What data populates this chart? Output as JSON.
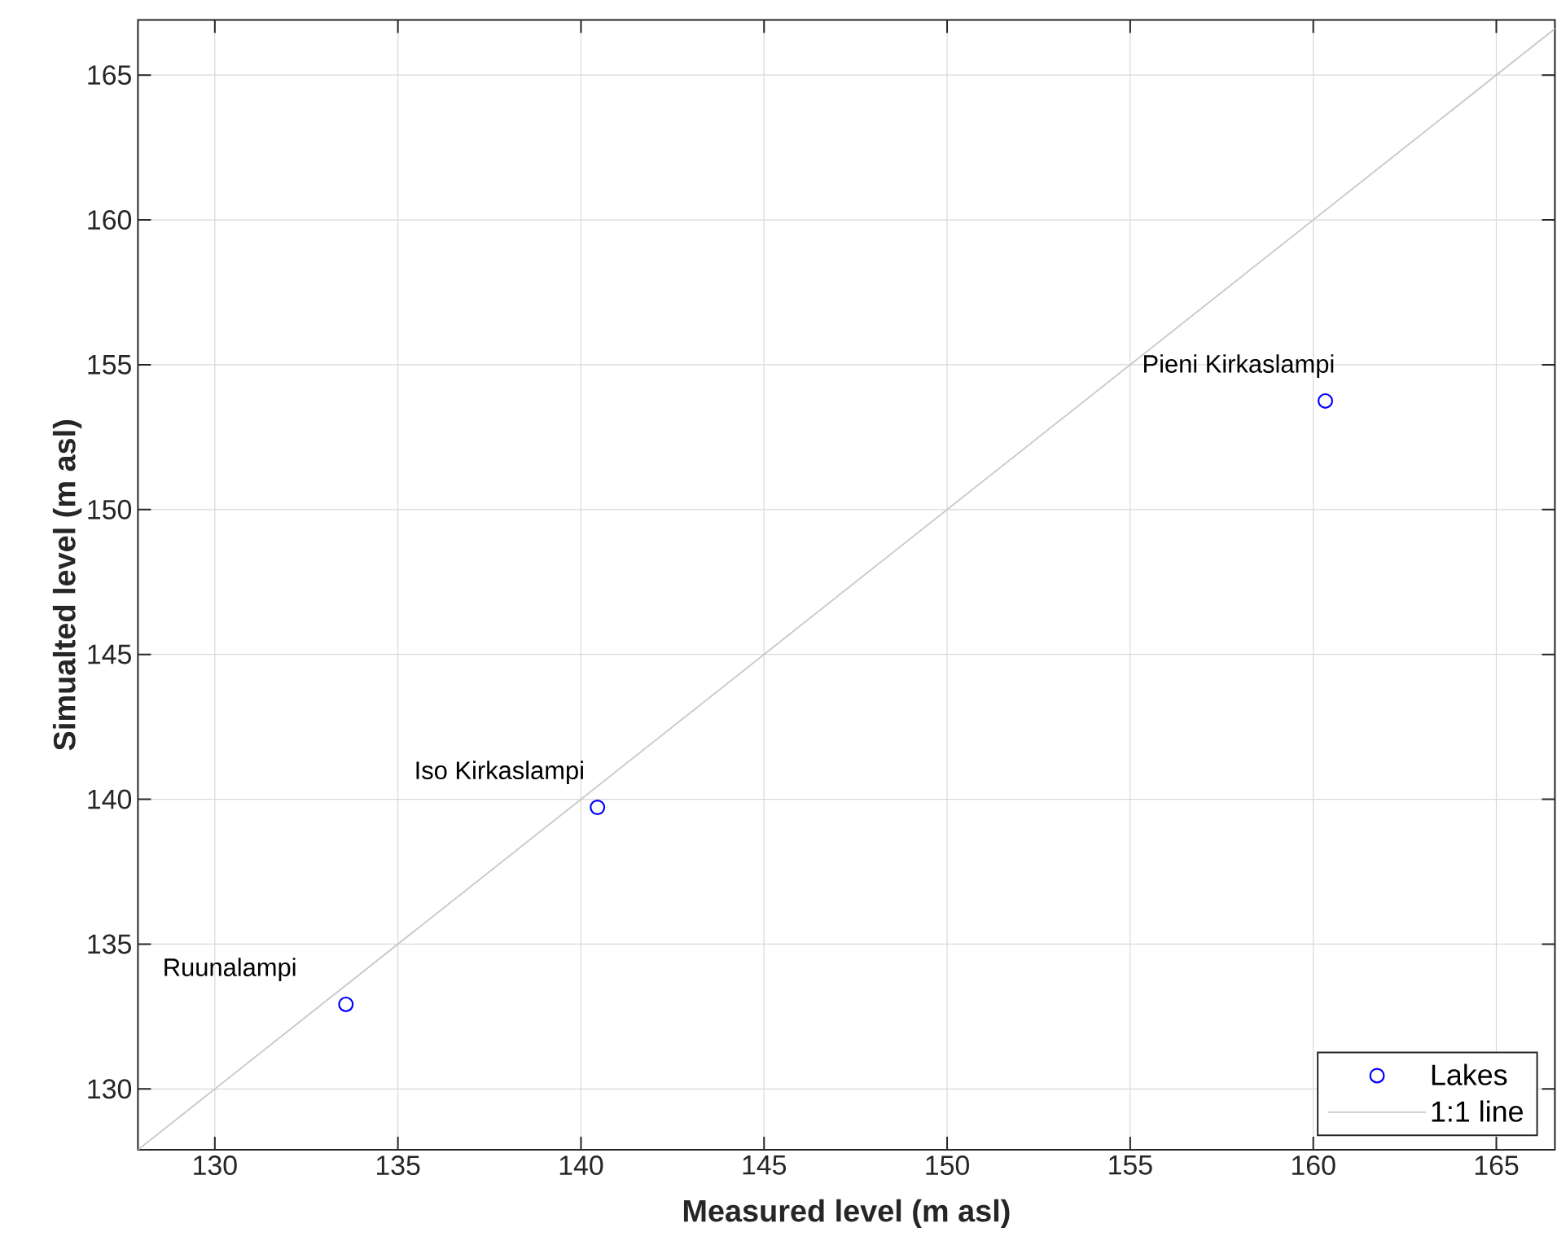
{
  "chart_data": {
    "type": "scatter",
    "xlabel": "Measured level (m asl)",
    "ylabel": "Simualted level (m asl)",
    "xlim": [
      127.9,
      166.6
    ],
    "ylim": [
      127.9,
      166.9
    ],
    "xticks": [
      130,
      135,
      140,
      145,
      150,
      155,
      160,
      165
    ],
    "yticks": [
      130,
      135,
      140,
      145,
      150,
      155,
      160,
      165
    ],
    "grid": true,
    "legend": "bottom right",
    "series": [
      {
        "name": "Lakes",
        "color": "#0000ff",
        "marker": "circle",
        "x": [
          133.58,
          140.45,
          160.33
        ],
        "values": [
          132.92,
          139.72,
          153.75
        ]
      },
      {
        "name": "1:1 line",
        "type": "line",
        "color": "#c8c8c8",
        "marker": "none",
        "x": [
          127.9,
          166.6
        ],
        "values": [
          127.9,
          166.6
        ]
      }
    ],
    "annotations": [
      {
        "text": "Ruunalampi",
        "x": 133.58,
        "y": 132.92
      },
      {
        "text": "Iso Kirkaslampi",
        "x": 140.45,
        "y": 139.72
      },
      {
        "text": "Pieni Kirkaslampi",
        "x": 160.33,
        "y": 153.75
      }
    ]
  }
}
